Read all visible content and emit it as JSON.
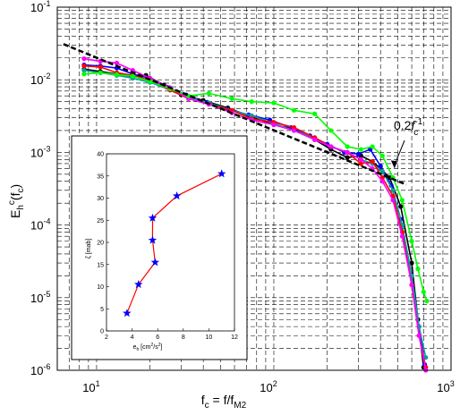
{
  "chart_data": [
    {
      "type": "line",
      "xscale": "log",
      "yscale": "log",
      "xlim": [
        6,
        1000
      ],
      "ylim": [
        1e-06,
        0.1
      ],
      "grid": true,
      "xlabel_main": "f",
      "xlabel_sub": "c",
      "xlabel_eq": " = f/f",
      "xlabel_sub2": "M2",
      "ylabel_main": "E",
      "ylabel_sub": "h",
      "ylabel_sup": "c",
      "ylabel_paren": "(f",
      "ylabel_sub2": "c",
      "ylabel_close": ")",
      "x_ticks": [
        {
          "value": 10,
          "base": "10",
          "exp": "1"
        },
        {
          "value": 100,
          "base": "10",
          "exp": "2"
        },
        {
          "value": 1000,
          "base": "10",
          "exp": "3"
        }
      ],
      "y_ticks": [
        {
          "value": 1e-06,
          "base": "10",
          "exp": "-6"
        },
        {
          "value": 1e-05,
          "base": "10",
          "exp": "-5"
        },
        {
          "value": 0.0001,
          "base": "10",
          "exp": "-4"
        },
        {
          "value": 0.001,
          "base": "10",
          "exp": "-3"
        },
        {
          "value": 0.01,
          "base": "10",
          "exp": "-2"
        },
        {
          "value": 0.1,
          "base": "10",
          "exp": "-1"
        }
      ],
      "annotation": {
        "coef": "0.2",
        "var": "f",
        "sub": "c",
        "sup": "-1",
        "arrow_to": [
          480,
          0.0006
        ]
      },
      "reference_line": {
        "name": "0.2f_c^-1",
        "x": [
          6.5,
          560
        ],
        "y": [
          0.031,
          0.00036
        ],
        "style": "dashed",
        "color": "#000000"
      },
      "series": [
        {
          "color": "#000000",
          "x": [
            8.5,
            10.5,
            13,
            16,
            19,
            24,
            30,
            40,
            55,
            75,
            100,
            130,
            170,
            210,
            260,
            310,
            360,
            400,
            450,
            520,
            600,
            650,
            700
          ],
          "y": [
            0.014,
            0.013,
            0.012,
            0.011,
            0.0115,
            0.0085,
            0.0062,
            0.0052,
            0.0041,
            0.0031,
            0.0024,
            0.0021,
            0.0015,
            0.0011,
            0.00085,
            0.0009,
            0.00075,
            0.0006,
            0.00045,
            0.00018,
            3e-05,
            5e-06,
            1.1e-06
          ]
        },
        {
          "color": "#0000ff",
          "x": [
            8.5,
            10.5,
            13,
            16,
            20,
            25,
            32,
            42,
            55,
            72,
            95,
            125,
            160,
            200,
            250,
            300,
            350,
            400,
            460,
            520,
            600,
            660,
            710
          ],
          "y": [
            0.016,
            0.0155,
            0.0145,
            0.012,
            0.0105,
            0.0079,
            0.0062,
            0.0049,
            0.0039,
            0.0033,
            0.0028,
            0.0022,
            0.0017,
            0.0013,
            0.001,
            0.00095,
            0.0011,
            0.00065,
            0.00035,
            0.00012,
            2e-05,
            4e-06,
            1.2e-06
          ]
        },
        {
          "color": "#00a0a0",
          "x": [
            8.5,
            10.5,
            13,
            16,
            20,
            26,
            33,
            43,
            58,
            75,
            100,
            130,
            170,
            210,
            260,
            310,
            360,
            410,
            470,
            530,
            600,
            660,
            720
          ],
          "y": [
            0.0135,
            0.0125,
            0.0115,
            0.0105,
            0.0092,
            0.0073,
            0.0058,
            0.0048,
            0.0038,
            0.0032,
            0.0025,
            0.002,
            0.0016,
            0.0012,
            0.001,
            0.0008,
            0.0007,
            0.00055,
            0.0003,
            0.0001,
            2e-05,
            4e-06,
            1.5e-06
          ]
        },
        {
          "color": "#ff0000",
          "x": [
            8.5,
            10.5,
            13,
            16,
            20,
            26,
            33,
            43,
            58,
            75,
            100,
            130,
            170,
            210,
            260,
            310,
            360,
            410,
            470,
            530,
            600,
            660,
            720
          ],
          "y": [
            0.0155,
            0.015,
            0.0125,
            0.0115,
            0.0098,
            0.0072,
            0.0055,
            0.0046,
            0.0038,
            0.0029,
            0.0026,
            0.0022,
            0.0016,
            0.0012,
            0.001,
            0.0007,
            0.00075,
            0.00045,
            0.00025,
            8e-05,
            1.5e-05,
            3e-06,
            1.1e-06
          ]
        },
        {
          "color": "#ff00ff",
          "x": [
            8.5,
            10.5,
            13,
            16,
            20,
            26,
            33,
            43,
            58,
            75,
            100,
            130,
            170,
            210,
            260,
            310,
            360,
            410,
            470,
            530,
            600,
            660,
            720
          ],
          "y": [
            0.0195,
            0.018,
            0.017,
            0.0135,
            0.0105,
            0.0078,
            0.0055,
            0.0046,
            0.0035,
            0.0028,
            0.0024,
            0.002,
            0.0015,
            0.0012,
            0.001,
            0.0008,
            0.0006,
            0.0004,
            0.00022,
            7e-05,
            1.5e-05,
            3e-06,
            1e-06
          ]
        },
        {
          "color": "#00ff00",
          "x": [
            8.5,
            10.5,
            13,
            16,
            20,
            26,
            33,
            43,
            58,
            75,
            100,
            130,
            170,
            210,
            260,
            310,
            360,
            410,
            470,
            530,
            600,
            650,
            700,
            730
          ],
          "y": [
            0.012,
            0.0125,
            0.0118,
            0.0112,
            0.0095,
            0.0075,
            0.006,
            0.0065,
            0.0055,
            0.005,
            0.0048,
            0.0038,
            0.0034,
            0.002,
            0.0012,
            0.0011,
            0.0012,
            0.0009,
            0.00045,
            0.00022,
            6e-05,
            2.5e-05,
            1.2e-05,
            9e-06
          ]
        }
      ]
    },
    {
      "type": "line",
      "xlim": [
        2,
        12
      ],
      "ylim": [
        0,
        40
      ],
      "grid": false,
      "xlabel_main": "e",
      "xlabel_sub": "h",
      "xlabel_rest": "  [cm",
      "xlabel_sup1": "2",
      "xlabel_mid": "/s",
      "xlabel_sup2": "2",
      "xlabel_end": "]",
      "ylabel": "ζ [mab]",
      "x_ticks": [
        2,
        4,
        6,
        8,
        10,
        12
      ],
      "y_ticks": [
        0,
        5,
        10,
        15,
        20,
        25,
        30,
        35,
        40
      ],
      "series": [
        {
          "color": "#ff0000",
          "marker_color": "#0000ff",
          "x": [
            3.6,
            4.5,
            5.8,
            5.6,
            5.6,
            7.5,
            11
          ],
          "y": [
            4,
            10.5,
            15.5,
            20.5,
            25.5,
            30.5,
            35.5
          ]
        }
      ]
    }
  ]
}
